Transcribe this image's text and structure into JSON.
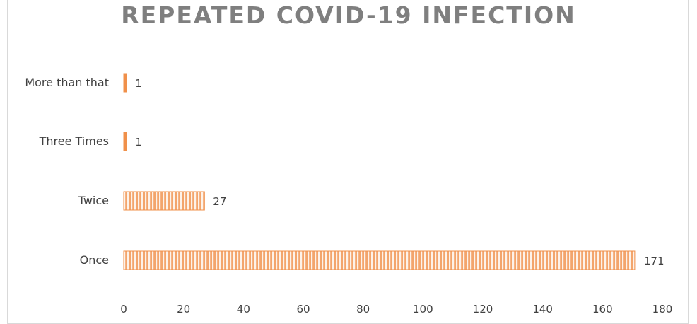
{
  "chart_data": {
    "type": "bar",
    "orientation": "horizontal",
    "title": "REPEATED COVID-19 INFECTION",
    "categories": [
      "More than that",
      "Three Times",
      "Twice",
      "Once"
    ],
    "values": [
      1,
      1,
      27,
      171
    ],
    "xlim": [
      0,
      180
    ],
    "xticks": [
      0,
      20,
      40,
      60,
      80,
      100,
      120,
      140,
      160,
      180
    ],
    "xlabel": "",
    "ylabel": "",
    "grid": false,
    "legend": "none",
    "data_labels": true,
    "bar_color": "#f0904a",
    "bar_pattern": "vertical-stripes"
  }
}
